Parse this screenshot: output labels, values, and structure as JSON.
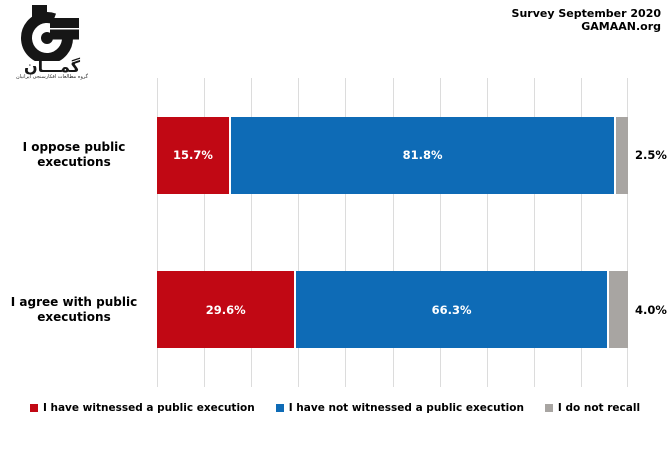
{
  "header": {
    "line1": "Survey September 2020",
    "line2": "GAMAAN.org"
  },
  "logo": {
    "wordmark": "گمـــان",
    "tagline": "گروه مطالعات افکارسنجی ایرانیان"
  },
  "colors": {
    "witnessed_red": "#C10814",
    "not_witnessed_blue": "#0E6BB6",
    "no_recall_gray": "#A8A5A2",
    "gridline": "#DCDCDC",
    "text": "#000000",
    "bar_value_text": "#FFFFFF"
  },
  "chart_data": {
    "type": "bar",
    "orientation": "horizontal",
    "stacked": true,
    "title": "",
    "xlabel": "",
    "ylabel": "",
    "xlim": [
      0,
      100
    ],
    "grid": true,
    "gridlines_percent": [
      0,
      10,
      20,
      30,
      40,
      50,
      60,
      70,
      80,
      90,
      100
    ],
    "legend_position": "bottom",
    "categories": [
      "I oppose public\nexecutions",
      "I agree with public\nexecutions"
    ],
    "series": [
      {
        "key": "witnessed",
        "name": "I have witnessed a public execution",
        "color": "#C10814",
        "values": [
          15.7,
          29.6
        ],
        "labels": [
          "15.7%",
          "29.6%"
        ],
        "label_placement": "inside"
      },
      {
        "key": "not-witnessed",
        "name": "I have not witnessed a public execution",
        "color": "#0E6BB6",
        "values": [
          81.8,
          66.3
        ],
        "labels": [
          "81.8%",
          "66.3%"
        ],
        "label_placement": "inside"
      },
      {
        "key": "do-not-recall",
        "name": "I do not recall",
        "color": "#A8A5A2",
        "values": [
          2.5,
          4.0
        ],
        "labels": [
          "2.5%",
          "4.0%"
        ],
        "label_placement": "outside"
      }
    ]
  }
}
